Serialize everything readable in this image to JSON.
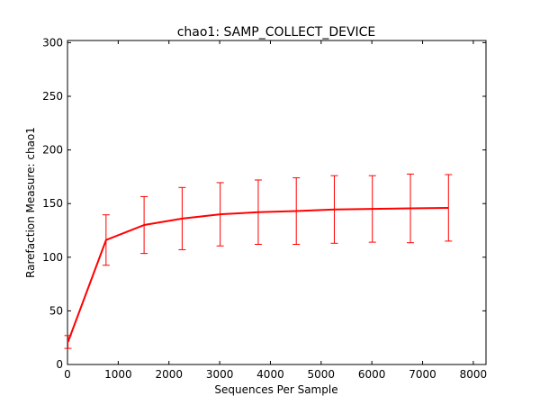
{
  "chart_data": {
    "type": "line",
    "title": "chao1: SAMP_COLLECT_DEVICE",
    "xlabel": "Sequences Per Sample",
    "ylabel": "Rarefaction Measure: chao1",
    "xlim": [
      0,
      8250
    ],
    "ylim": [
      0,
      302
    ],
    "xticks": [
      0,
      1000,
      2000,
      3000,
      4000,
      5000,
      6000,
      7000,
      8000
    ],
    "yticks": [
      0,
      50,
      100,
      150,
      200,
      250,
      300
    ],
    "grid": false,
    "legend": "none",
    "series": [
      {
        "color": "#ff0000",
        "x": [
          10,
          760,
          1510,
          2260,
          3010,
          3760,
          4510,
          5260,
          6010,
          6760,
          7510
        ],
        "y": [
          21,
          116,
          130,
          136,
          140,
          142,
          143,
          144.5,
          145,
          145.5,
          146
        ],
        "error": [
          6,
          23.5,
          26.5,
          29,
          29.5,
          30,
          31,
          31.5,
          31,
          32,
          31
        ]
      }
    ]
  }
}
